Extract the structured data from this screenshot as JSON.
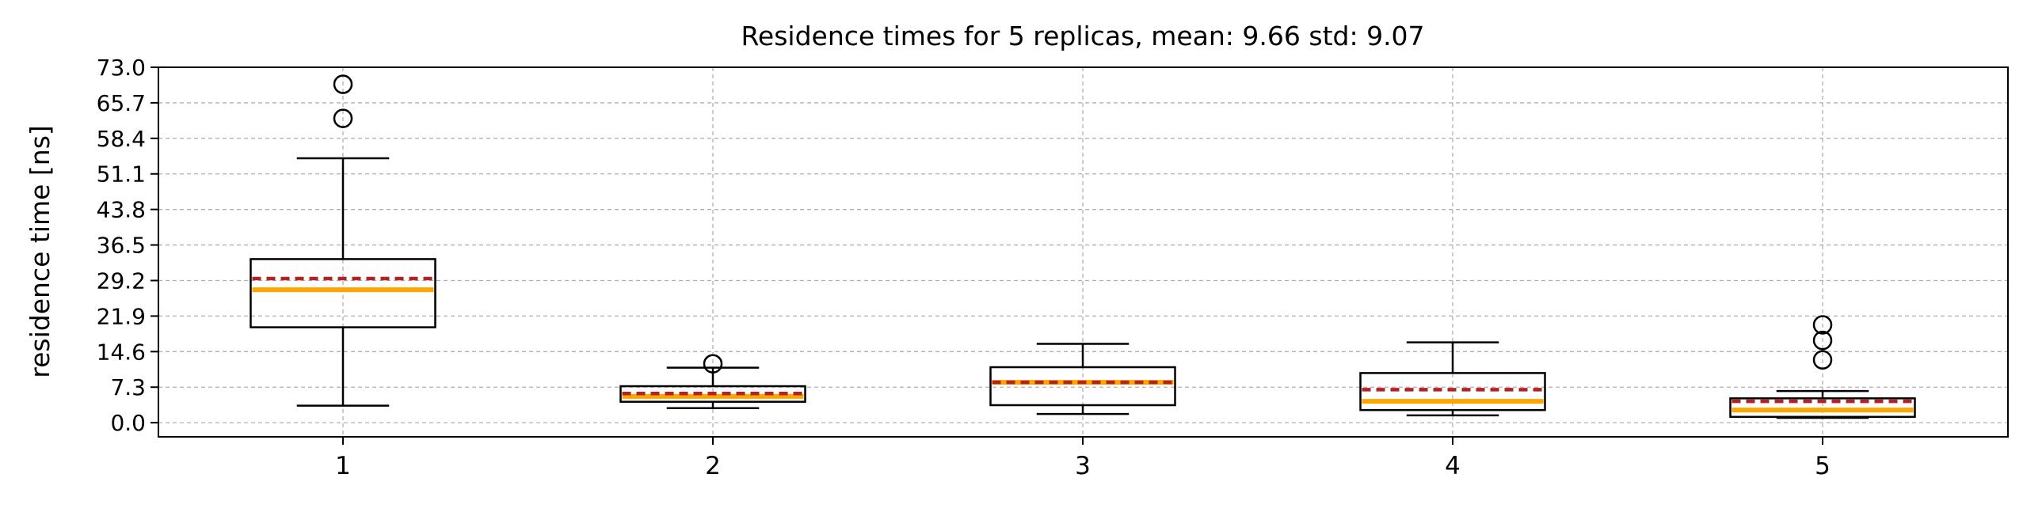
{
  "chart_data": {
    "type": "box",
    "title": "Residence times for 5 replicas, mean: 9.66  std: 9.07",
    "xlabel": "",
    "ylabel": "residence time [ns]",
    "ylim": [
      -2.9,
      73.0
    ],
    "yticks": [
      "0.0",
      "7.3",
      "14.6",
      "21.9",
      "29.2",
      "36.5",
      "43.8",
      "51.1",
      "58.4",
      "65.7",
      "73.0"
    ],
    "categories": [
      "1",
      "2",
      "3",
      "4",
      "5"
    ],
    "grid": true,
    "median_color": "#FFA500",
    "mean_color": "#B22222",
    "box_color": "#000000",
    "series": [
      {
        "label": "1",
        "whisker_low": 3.5,
        "q1": 19.6,
        "median": 27.3,
        "mean": 29.6,
        "q3": 33.6,
        "whisker_high": 54.3,
        "outliers": [
          62.5,
          69.5
        ]
      },
      {
        "label": "2",
        "whisker_low": 3.0,
        "q1": 4.3,
        "median": 5.4,
        "mean": 6.0,
        "q3": 7.5,
        "whisker_high": 11.3,
        "outliers": [
          12.1
        ]
      },
      {
        "label": "3",
        "whisker_low": 1.8,
        "q1": 3.6,
        "median": 8.3,
        "mean": 8.3,
        "q3": 11.4,
        "whisker_high": 16.2,
        "outliers": []
      },
      {
        "label": "4",
        "whisker_low": 1.5,
        "q1": 2.6,
        "median": 4.4,
        "mean": 6.8,
        "q3": 10.2,
        "whisker_high": 16.5,
        "outliers": []
      },
      {
        "label": "5",
        "whisker_low": 1.0,
        "q1": 1.2,
        "median": 2.6,
        "mean": 4.4,
        "q3": 5.0,
        "whisker_high": 6.5,
        "outliers": [
          12.9,
          16.9,
          20.1
        ]
      }
    ]
  }
}
